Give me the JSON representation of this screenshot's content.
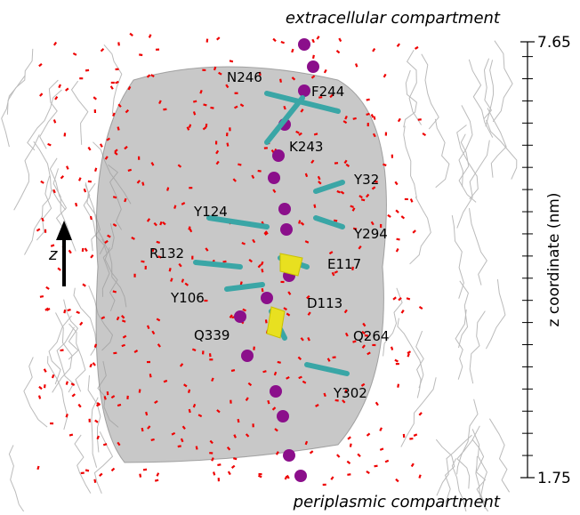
{
  "header": {
    "top_label": "extracellular compartment",
    "bottom_label": "periplasmic compartment"
  },
  "axis_arrow_label": "z",
  "residue_labels": [
    "N246",
    "F244",
    "K243",
    "Y32",
    "Y124",
    "Y294",
    "R132",
    "E117",
    "Y106",
    "D113",
    "Q339",
    "Q264",
    "Y302"
  ],
  "chart_data": {
    "type": "axis",
    "y_label": "z coordinate (nm)",
    "ylim": [
      1.75,
      7.65
    ],
    "yticks": [
      1.75,
      7.65
    ],
    "minor_yticks": [
      2.05,
      2.35,
      2.65,
      2.95,
      3.25,
      3.55,
      3.85,
      4.15,
      4.45,
      4.75,
      5.05,
      5.35,
      5.65,
      5.95,
      6.25,
      6.55,
      6.85,
      7.15,
      7.45
    ]
  }
}
